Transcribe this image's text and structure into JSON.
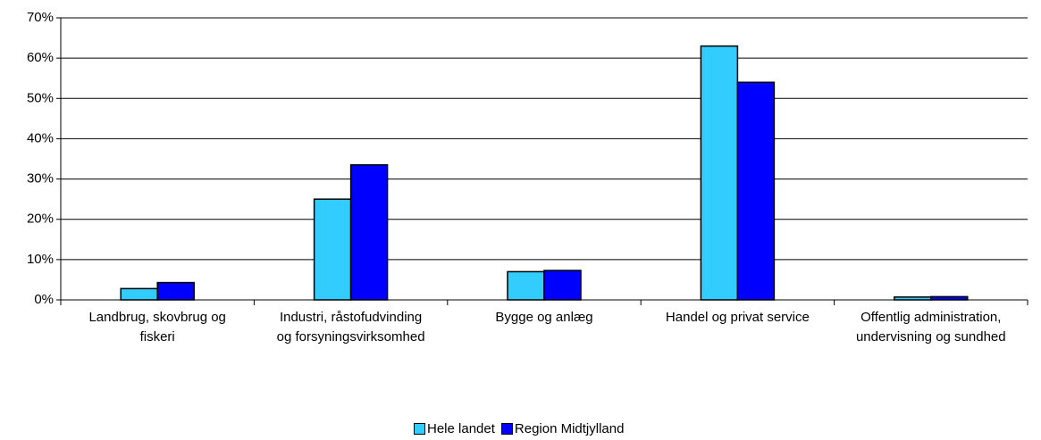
{
  "chart_data": {
    "type": "bar",
    "categories": [
      "Landbrug, skovbrug og fiskeri",
      "Industri, råstofudvinding og forsyningsvirksomhed",
      "Bygge og anlæg",
      "Handel og privat service",
      "Offentlig administration, undervisning og sundhed"
    ],
    "series": [
      {
        "name": "Hele landet",
        "color": "#33ccff",
        "values": [
          2.8,
          25,
          7,
          63,
          0.7
        ]
      },
      {
        "name": "Region Midtjylland",
        "color": "#0000ff",
        "values": [
          4.3,
          33.5,
          7.3,
          54,
          0.8
        ]
      }
    ],
    "ylim": [
      0,
      70
    ],
    "yticks": [
      {
        "value": 0,
        "label": "0%"
      },
      {
        "value": 10,
        "label": "10%"
      },
      {
        "value": 20,
        "label": "20%"
      },
      {
        "value": 30,
        "label": "30%"
      },
      {
        "value": 40,
        "label": "40%"
      },
      {
        "value": 50,
        "label": "50%"
      },
      {
        "value": 60,
        "label": "60%"
      },
      {
        "value": 70,
        "label": "70%"
      }
    ],
    "grid": true,
    "legend": "bottom"
  }
}
